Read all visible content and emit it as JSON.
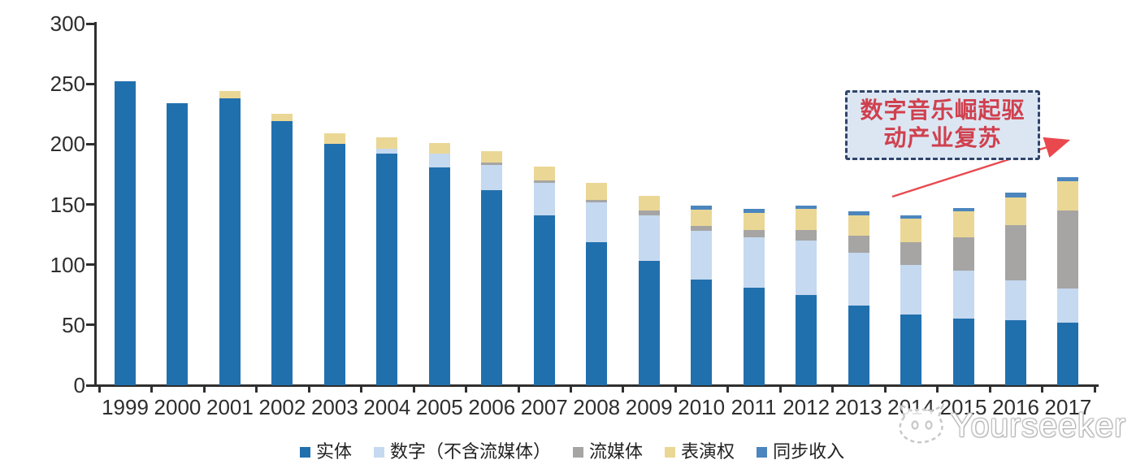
{
  "chart_data": {
    "type": "bar",
    "stacked": true,
    "title": "",
    "xlabel": "",
    "ylabel": "",
    "ylim": [
      0,
      300
    ],
    "yticks": [
      0,
      50,
      100,
      150,
      200,
      250,
      300
    ],
    "grid": false,
    "legend_position": "bottom",
    "categories": [
      "1999",
      "2000",
      "2001",
      "2002",
      "2003",
      "2004",
      "2005",
      "2006",
      "2007",
      "2008",
      "2009",
      "2010",
      "2011",
      "2012",
      "2013",
      "2014",
      "2015",
      "2016",
      "2017"
    ],
    "series": [
      {
        "name": "实体",
        "color": "#2170AE",
        "values": [
          252,
          234,
          238,
          219,
          200,
          192,
          181,
          162,
          141,
          119,
          103,
          88,
          81,
          75,
          66,
          59,
          55,
          54,
          52
        ]
      },
      {
        "name": "数字（不含流媒体）",
        "color": "#C5D9F0",
        "values": [
          0,
          0,
          0,
          0,
          0,
          4,
          11,
          21,
          27,
          33,
          38,
          40,
          42,
          45,
          44,
          41,
          40,
          33,
          28
        ]
      },
      {
        "name": "流媒体",
        "color": "#A6A5A4",
        "values": [
          0,
          0,
          0,
          0,
          0,
          0,
          0,
          2,
          2,
          2,
          4,
          4,
          6,
          9,
          14,
          19,
          28,
          46,
          65
        ]
      },
      {
        "name": "表演权",
        "color": "#EBD795",
        "values": [
          0,
          0,
          6,
          6,
          9,
          10,
          9,
          9,
          11,
          14,
          12,
          14,
          14,
          17,
          17,
          19,
          21,
          23,
          24
        ]
      },
      {
        "name": "同步收入",
        "color": "#4C86BE",
        "values": [
          0,
          0,
          0,
          0,
          0,
          0,
          0,
          0,
          0,
          0,
          0,
          3,
          3,
          3,
          3,
          3,
          3,
          4,
          4
        ]
      }
    ]
  },
  "annotation": {
    "lines": [
      "数字音乐崛起驱",
      "动产业复苏"
    ],
    "box_fill": "#DCE6F3",
    "border_color": "#31456B",
    "text_color": "#D0404E",
    "arrow_color": "#E9494E"
  },
  "watermark": {
    "text": "Yourseeker",
    "logo": "cat-face-icon"
  },
  "colors": {
    "background": "#FFFFFF",
    "axis": "#2F2F2F",
    "tick_label": "#2E2E2E"
  }
}
